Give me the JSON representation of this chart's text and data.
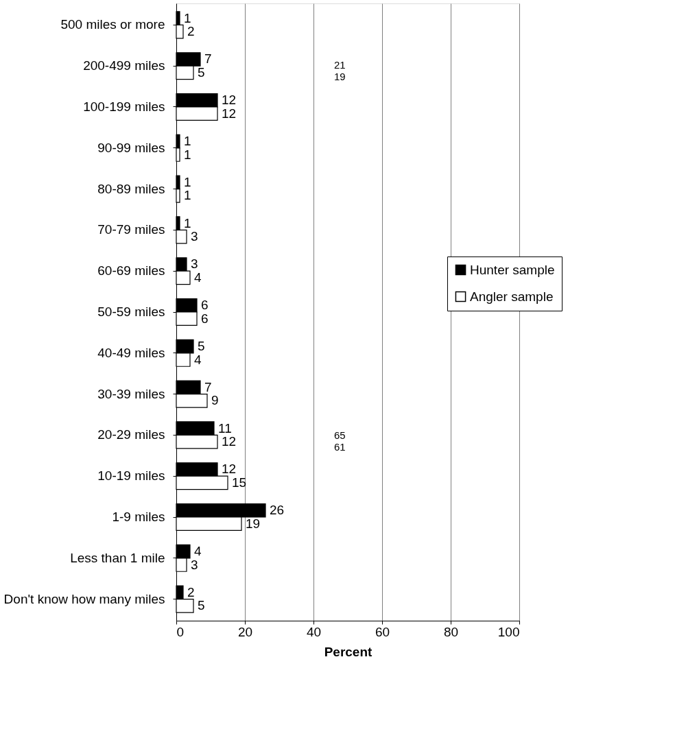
{
  "chart_data": {
    "type": "bar",
    "orientation": "horizontal",
    "xlabel": "Percent",
    "categories": [
      "500 miles or more",
      "200-499 miles",
      "100-199 miles",
      "90-99 miles",
      "80-89 miles",
      "70-79 miles",
      "60-69 miles",
      "50-59 miles",
      "40-49 miles",
      "30-39 miles",
      "20-29 miles",
      "10-19 miles",
      "1-9 miles",
      "Less than 1 mile",
      "Don't know how many miles"
    ],
    "series": [
      {
        "name": "Hunter sample",
        "color": "#000000",
        "values": [
          1,
          7,
          12,
          1,
          1,
          1,
          3,
          6,
          5,
          7,
          11,
          12,
          26,
          4,
          2
        ]
      },
      {
        "name": "Angler sample",
        "color": "#ffffff",
        "values": [
          2,
          5,
          12,
          1,
          1,
          3,
          4,
          6,
          4,
          9,
          12,
          15,
          19,
          3,
          5
        ]
      }
    ],
    "xlim": [
      0,
      100
    ],
    "xticks": [
      0,
      20,
      40,
      60,
      80,
      100
    ],
    "grid": "x",
    "legend": "right",
    "data_labels": true,
    "annotations": [
      "21\n19",
      "65\n61"
    ]
  }
}
